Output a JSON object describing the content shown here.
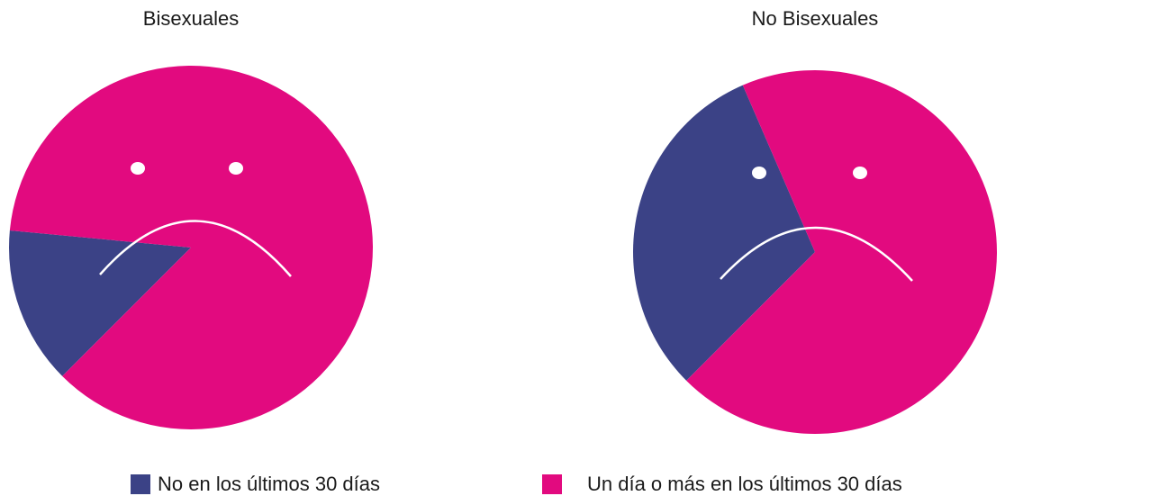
{
  "chart_data": [
    {
      "type": "pie",
      "title": "Bisexuales",
      "categories": [
        "No en los últimos 30 días",
        "Un día o más en los últimos 30 días"
      ],
      "values": [
        14,
        86
      ],
      "colors": [
        "#3b4286",
        "#e20a7f"
      ]
    },
    {
      "type": "pie",
      "title": "No Bisexuales",
      "categories": [
        "No en los últimos 30 días",
        "Un día o más en los últimos 30 días"
      ],
      "values": [
        31,
        69
      ],
      "colors": [
        "#3b4286",
        "#e20a7f"
      ]
    }
  ]
}
